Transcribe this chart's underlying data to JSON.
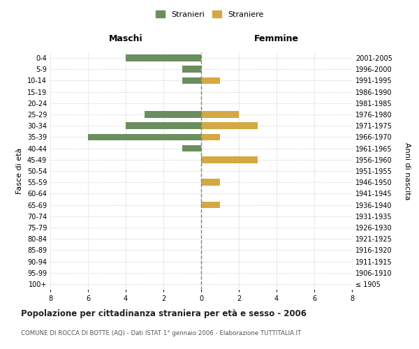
{
  "age_groups": [
    "100+",
    "95-99",
    "90-94",
    "85-89",
    "80-84",
    "75-79",
    "70-74",
    "65-69",
    "60-64",
    "55-59",
    "50-54",
    "45-49",
    "40-44",
    "35-39",
    "30-34",
    "25-29",
    "20-24",
    "15-19",
    "10-14",
    "5-9",
    "0-4"
  ],
  "birth_years": [
    "≤ 1905",
    "1906-1910",
    "1911-1915",
    "1916-1920",
    "1921-1925",
    "1926-1930",
    "1931-1935",
    "1936-1940",
    "1941-1945",
    "1946-1950",
    "1951-1955",
    "1956-1960",
    "1961-1965",
    "1966-1970",
    "1971-1975",
    "1976-1980",
    "1981-1985",
    "1986-1990",
    "1991-1995",
    "1996-2000",
    "2001-2005"
  ],
  "maschi": [
    0,
    0,
    0,
    0,
    0,
    0,
    0,
    0,
    0,
    0,
    0,
    0,
    1,
    6,
    4,
    3,
    0,
    0,
    1,
    1,
    4
  ],
  "femmine": [
    0,
    0,
    0,
    0,
    0,
    0,
    0,
    1,
    0,
    1,
    0,
    3,
    0,
    1,
    3,
    2,
    0,
    0,
    1,
    0,
    0
  ],
  "color_maschi": "#6b8e5e",
  "color_femmine": "#d4a843",
  "title": "Popolazione per cittadinanza straniera per età e sesso - 2006",
  "subtitle": "COMUNE DI ROCCA DI BOTTE (AQ) - Dati ISTAT 1° gennaio 2006 - Elaborazione TUTTITALIA.IT",
  "xlabel_left": "Maschi",
  "xlabel_right": "Femmine",
  "ylabel_left": "Fasce di età",
  "ylabel_right": "Anni di nascita",
  "legend_stranieri": "Stranieri",
  "legend_straniere": "Straniere",
  "xlim": 8,
  "background_color": "#ffffff",
  "grid_color": "#cccccc"
}
